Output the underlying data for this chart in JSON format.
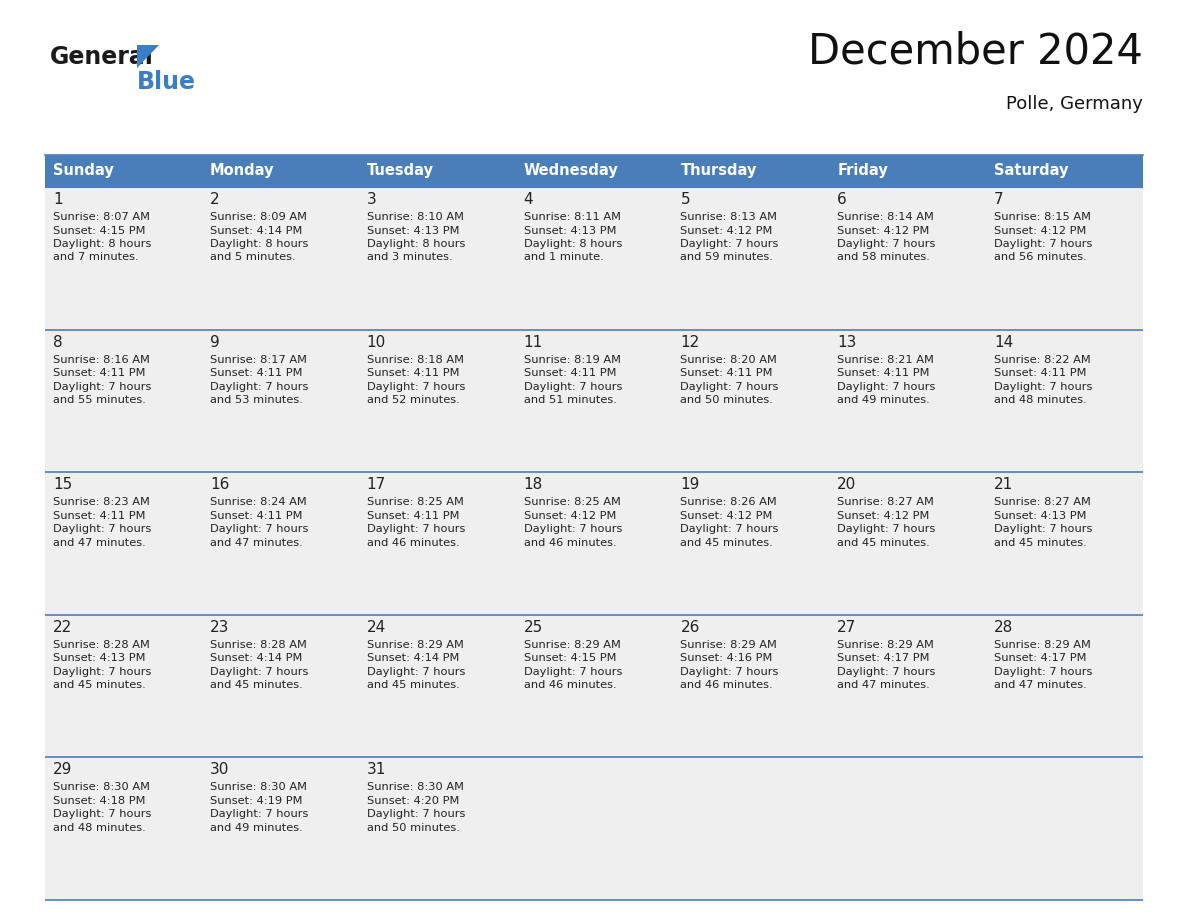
{
  "title": "December 2024",
  "subtitle": "Polle, Germany",
  "header_bg": "#4A7EBB",
  "header_text": "#FFFFFF",
  "header_font_size": 10.5,
  "day_names": [
    "Sunday",
    "Monday",
    "Tuesday",
    "Wednesday",
    "Thursday",
    "Friday",
    "Saturday"
  ],
  "cell_bg": "#EFEFEF",
  "cell_bg_empty": "#F5F5F5",
  "row_sep_color": "#4A7EBB",
  "text_color": "#222222",
  "date_font_size": 10,
  "info_font_size": 8.2,
  "title_fontsize": 30,
  "subtitle_fontsize": 13,
  "days": [
    {
      "date": 1,
      "row": 0,
      "col": 0,
      "sunrise": "8:07 AM",
      "sunset": "4:15 PM",
      "daylight": "8 hours",
      "daylight2": "and 7 minutes."
    },
    {
      "date": 2,
      "row": 0,
      "col": 1,
      "sunrise": "8:09 AM",
      "sunset": "4:14 PM",
      "daylight": "8 hours",
      "daylight2": "and 5 minutes."
    },
    {
      "date": 3,
      "row": 0,
      "col": 2,
      "sunrise": "8:10 AM",
      "sunset": "4:13 PM",
      "daylight": "8 hours",
      "daylight2": "and 3 minutes."
    },
    {
      "date": 4,
      "row": 0,
      "col": 3,
      "sunrise": "8:11 AM",
      "sunset": "4:13 PM",
      "daylight": "8 hours",
      "daylight2": "and 1 minute."
    },
    {
      "date": 5,
      "row": 0,
      "col": 4,
      "sunrise": "8:13 AM",
      "sunset": "4:12 PM",
      "daylight": "7 hours",
      "daylight2": "and 59 minutes."
    },
    {
      "date": 6,
      "row": 0,
      "col": 5,
      "sunrise": "8:14 AM",
      "sunset": "4:12 PM",
      "daylight": "7 hours",
      "daylight2": "and 58 minutes."
    },
    {
      "date": 7,
      "row": 0,
      "col": 6,
      "sunrise": "8:15 AM",
      "sunset": "4:12 PM",
      "daylight": "7 hours",
      "daylight2": "and 56 minutes."
    },
    {
      "date": 8,
      "row": 1,
      "col": 0,
      "sunrise": "8:16 AM",
      "sunset": "4:11 PM",
      "daylight": "7 hours",
      "daylight2": "and 55 minutes."
    },
    {
      "date": 9,
      "row": 1,
      "col": 1,
      "sunrise": "8:17 AM",
      "sunset": "4:11 PM",
      "daylight": "7 hours",
      "daylight2": "and 53 minutes."
    },
    {
      "date": 10,
      "row": 1,
      "col": 2,
      "sunrise": "8:18 AM",
      "sunset": "4:11 PM",
      "daylight": "7 hours",
      "daylight2": "and 52 minutes."
    },
    {
      "date": 11,
      "row": 1,
      "col": 3,
      "sunrise": "8:19 AM",
      "sunset": "4:11 PM",
      "daylight": "7 hours",
      "daylight2": "and 51 minutes."
    },
    {
      "date": 12,
      "row": 1,
      "col": 4,
      "sunrise": "8:20 AM",
      "sunset": "4:11 PM",
      "daylight": "7 hours",
      "daylight2": "and 50 minutes."
    },
    {
      "date": 13,
      "row": 1,
      "col": 5,
      "sunrise": "8:21 AM",
      "sunset": "4:11 PM",
      "daylight": "7 hours",
      "daylight2": "and 49 minutes."
    },
    {
      "date": 14,
      "row": 1,
      "col": 6,
      "sunrise": "8:22 AM",
      "sunset": "4:11 PM",
      "daylight": "7 hours",
      "daylight2": "and 48 minutes."
    },
    {
      "date": 15,
      "row": 2,
      "col": 0,
      "sunrise": "8:23 AM",
      "sunset": "4:11 PM",
      "daylight": "7 hours",
      "daylight2": "and 47 minutes."
    },
    {
      "date": 16,
      "row": 2,
      "col": 1,
      "sunrise": "8:24 AM",
      "sunset": "4:11 PM",
      "daylight": "7 hours",
      "daylight2": "and 47 minutes."
    },
    {
      "date": 17,
      "row": 2,
      "col": 2,
      "sunrise": "8:25 AM",
      "sunset": "4:11 PM",
      "daylight": "7 hours",
      "daylight2": "and 46 minutes."
    },
    {
      "date": 18,
      "row": 2,
      "col": 3,
      "sunrise": "8:25 AM",
      "sunset": "4:12 PM",
      "daylight": "7 hours",
      "daylight2": "and 46 minutes."
    },
    {
      "date": 19,
      "row": 2,
      "col": 4,
      "sunrise": "8:26 AM",
      "sunset": "4:12 PM",
      "daylight": "7 hours",
      "daylight2": "and 45 minutes."
    },
    {
      "date": 20,
      "row": 2,
      "col": 5,
      "sunrise": "8:27 AM",
      "sunset": "4:12 PM",
      "daylight": "7 hours",
      "daylight2": "and 45 minutes."
    },
    {
      "date": 21,
      "row": 2,
      "col": 6,
      "sunrise": "8:27 AM",
      "sunset": "4:13 PM",
      "daylight": "7 hours",
      "daylight2": "and 45 minutes."
    },
    {
      "date": 22,
      "row": 3,
      "col": 0,
      "sunrise": "8:28 AM",
      "sunset": "4:13 PM",
      "daylight": "7 hours",
      "daylight2": "and 45 minutes."
    },
    {
      "date": 23,
      "row": 3,
      "col": 1,
      "sunrise": "8:28 AM",
      "sunset": "4:14 PM",
      "daylight": "7 hours",
      "daylight2": "and 45 minutes."
    },
    {
      "date": 24,
      "row": 3,
      "col": 2,
      "sunrise": "8:29 AM",
      "sunset": "4:14 PM",
      "daylight": "7 hours",
      "daylight2": "and 45 minutes."
    },
    {
      "date": 25,
      "row": 3,
      "col": 3,
      "sunrise": "8:29 AM",
      "sunset": "4:15 PM",
      "daylight": "7 hours",
      "daylight2": "and 46 minutes."
    },
    {
      "date": 26,
      "row": 3,
      "col": 4,
      "sunrise": "8:29 AM",
      "sunset": "4:16 PM",
      "daylight": "7 hours",
      "daylight2": "and 46 minutes."
    },
    {
      "date": 27,
      "row": 3,
      "col": 5,
      "sunrise": "8:29 AM",
      "sunset": "4:17 PM",
      "daylight": "7 hours",
      "daylight2": "and 47 minutes."
    },
    {
      "date": 28,
      "row": 3,
      "col": 6,
      "sunrise": "8:29 AM",
      "sunset": "4:17 PM",
      "daylight": "7 hours",
      "daylight2": "and 47 minutes."
    },
    {
      "date": 29,
      "row": 4,
      "col": 0,
      "sunrise": "8:30 AM",
      "sunset": "4:18 PM",
      "daylight": "7 hours",
      "daylight2": "and 48 minutes."
    },
    {
      "date": 30,
      "row": 4,
      "col": 1,
      "sunrise": "8:30 AM",
      "sunset": "4:19 PM",
      "daylight": "7 hours",
      "daylight2": "and 49 minutes."
    },
    {
      "date": 31,
      "row": 4,
      "col": 2,
      "sunrise": "8:30 AM",
      "sunset": "4:20 PM",
      "daylight": "7 hours",
      "daylight2": "and 50 minutes."
    }
  ]
}
